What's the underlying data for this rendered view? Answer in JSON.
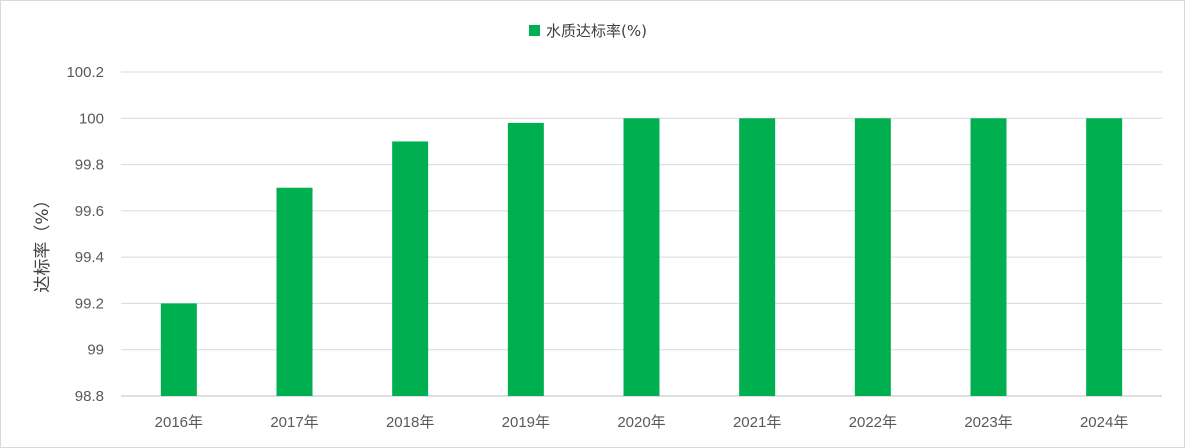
{
  "chart_data": {
    "type": "bar",
    "categories": [
      "2016年",
      "2017年",
      "2018年",
      "2019年",
      "2020年",
      "2021年",
      "2022年",
      "2023年",
      "2024年"
    ],
    "series": [
      {
        "name": "水质达标率(%)",
        "values": [
          99.2,
          99.7,
          99.9,
          99.98,
          100,
          100,
          100,
          100,
          100
        ],
        "color": "#00b050"
      }
    ],
    "xlabel": "",
    "ylabel": "达标率（%）",
    "ylim": [
      98.8,
      100.2
    ],
    "yticks": [
      "98.8",
      "99",
      "99.2",
      "99.4",
      "99.6",
      "99.8",
      "100",
      "100.2"
    ],
    "grid": true,
    "legend_position": "top-center"
  }
}
